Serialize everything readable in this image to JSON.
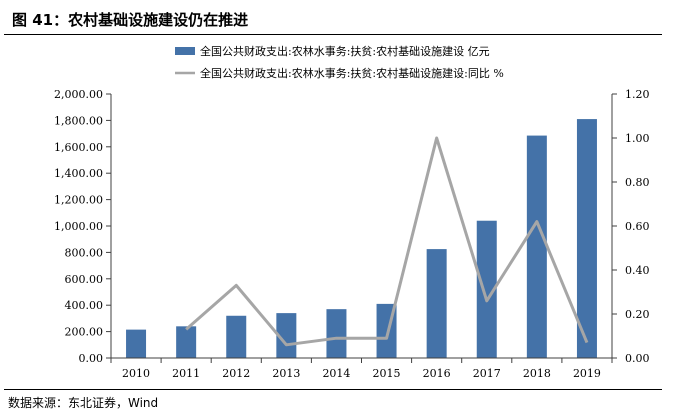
{
  "figure_title": "图 41：农村基础设施建设仍在推进",
  "source": "数据来源：东北证券，Wind",
  "chart_data": {
    "type": "bar",
    "categories": [
      "2010",
      "2011",
      "2012",
      "2013",
      "2014",
      "2015",
      "2016",
      "2017",
      "2018",
      "2019"
    ],
    "series": [
      {
        "name": "全国公共财政支出:农林水事务:扶贫:农村基础设施建设 亿元",
        "type": "bar",
        "axis": "left",
        "color": "#4472A8",
        "values": [
          215,
          240,
          320,
          340,
          370,
          410,
          825,
          1040,
          1685,
          1810
        ]
      },
      {
        "name": "全国公共财政支出:农林水事务:扶贫:农村基础设施建设:同比 %",
        "type": "line",
        "axis": "right",
        "color": "#A6A6A6",
        "values": [
          null,
          0.13,
          0.33,
          0.06,
          0.09,
          0.09,
          1.0,
          0.26,
          0.62,
          0.07
        ]
      }
    ],
    "left_axis": {
      "ylim": [
        0,
        2000
      ],
      "ticks": [
        "0.00",
        "200.00",
        "400.00",
        "600.00",
        "800.00",
        "1,000.00",
        "1,200.00",
        "1,400.00",
        "1,600.00",
        "1,800.00",
        "2,000.00"
      ]
    },
    "right_axis": {
      "ylim": [
        0,
        1.2
      ],
      "ticks": [
        "0.00",
        "0.20",
        "0.40",
        "0.60",
        "0.80",
        "1.00",
        "1.20"
      ]
    },
    "legend_position": "top",
    "grid": false
  }
}
